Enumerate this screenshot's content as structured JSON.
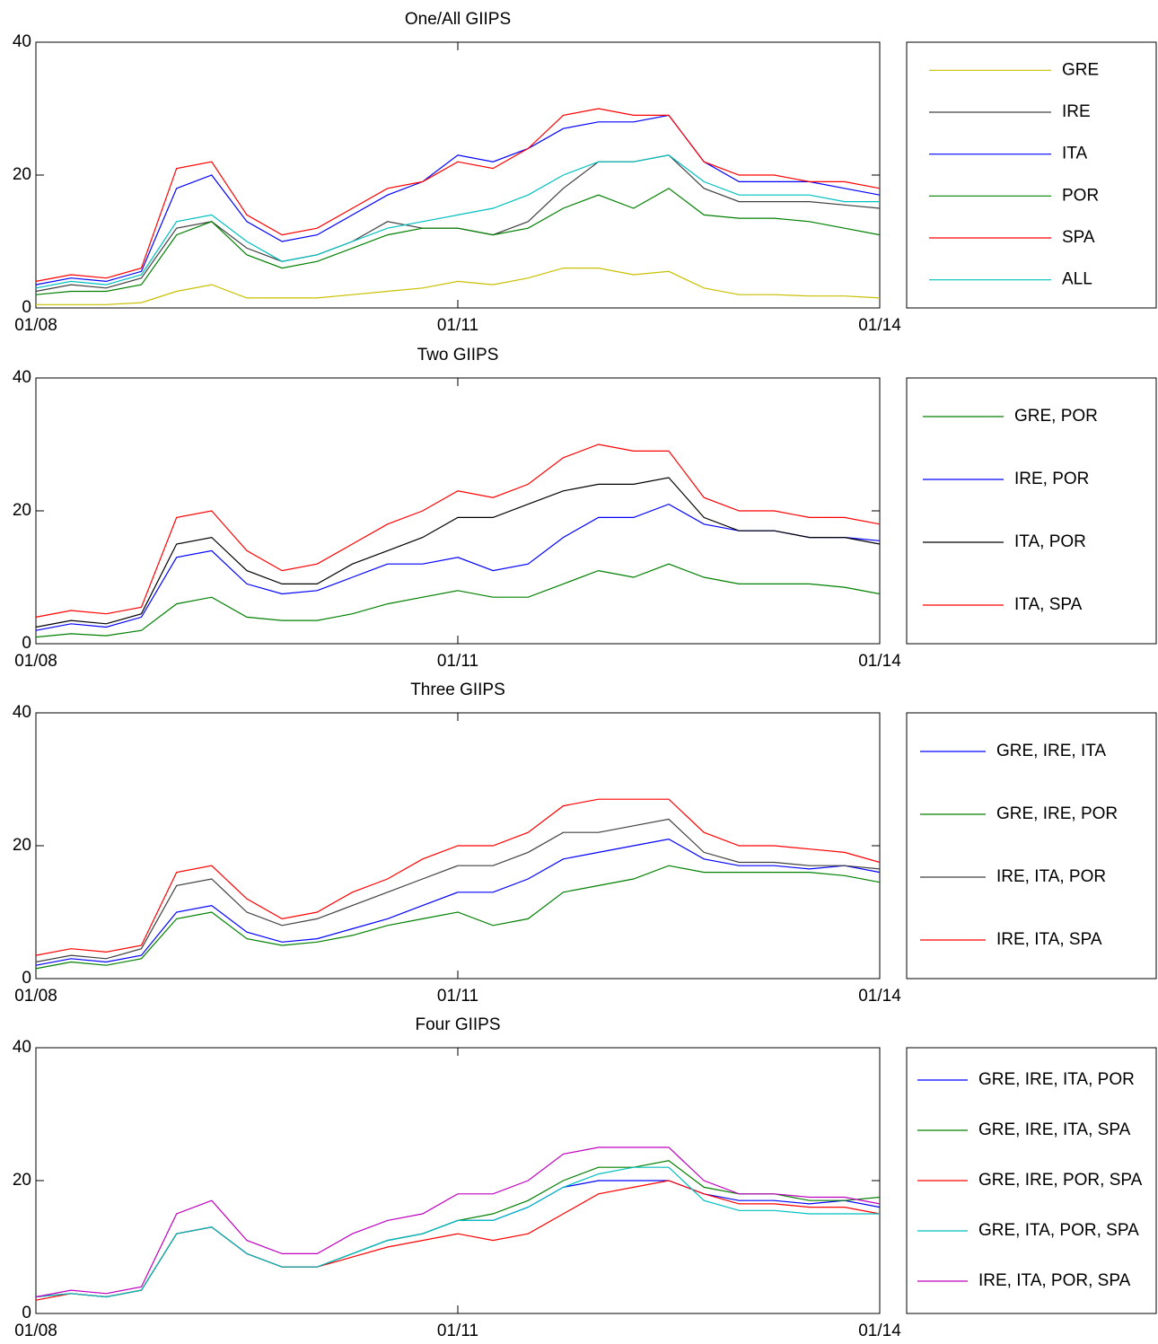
{
  "chart_data": [
    {
      "type": "line",
      "title": "One/All GIIPS",
      "x": [
        2008,
        2008.25,
        2008.5,
        2008.75,
        2009,
        2009.25,
        2009.5,
        2009.75,
        2010,
        2010.25,
        2010.5,
        2010.75,
        2011,
        2011.25,
        2011.5,
        2011.75,
        2012,
        2012.25,
        2012.5,
        2012.75,
        2013,
        2013.25,
        2013.5,
        2013.75,
        2014
      ],
      "xlim": [
        2008,
        2014
      ],
      "ylim": [
        0,
        40
      ],
      "yticks": [
        0,
        20,
        40
      ],
      "xticks": [
        {
          "value": 2008,
          "label": "01/08"
        },
        {
          "value": 2011,
          "label": "01/11"
        },
        {
          "value": 2014,
          "label": "01/14"
        }
      ],
      "series": [
        {
          "name": "GRE",
          "color": "#c8c000",
          "values": [
            0.5,
            0.5,
            0.5,
            0.8,
            2.5,
            3.5,
            1.5,
            1.5,
            1.5,
            2,
            2.5,
            3,
            4,
            3.5,
            4.5,
            6,
            6,
            5,
            5.5,
            3,
            2,
            2,
            1.8,
            1.8,
            1.5
          ]
        },
        {
          "name": "IRE",
          "color": "#404040",
          "values": [
            2.5,
            3.5,
            3,
            4.5,
            12,
            13,
            9,
            7,
            8,
            10,
            13,
            12,
            12,
            11,
            13,
            18,
            22,
            22,
            23,
            18,
            16,
            16,
            16,
            15.5,
            15
          ]
        },
        {
          "name": "ITA",
          "color": "#0000ff",
          "values": [
            3.5,
            4.5,
            4,
            5.5,
            18,
            20,
            13,
            10,
            11,
            14,
            17,
            19,
            23,
            22,
            24,
            27,
            28,
            28,
            29,
            22,
            19,
            19,
            19,
            18,
            17
          ]
        },
        {
          "name": "POR",
          "color": "#008000",
          "values": [
            2,
            2.5,
            2.5,
            3.5,
            11,
            13,
            8,
            6,
            7,
            9,
            11,
            12,
            12,
            11,
            12,
            15,
            17,
            15,
            18,
            14,
            13.5,
            13.5,
            13,
            12,
            11
          ]
        },
        {
          "name": "SPA",
          "color": "#ff0000",
          "values": [
            4,
            5,
            4.5,
            6,
            21,
            22,
            14,
            11,
            12,
            15,
            18,
            19,
            22,
            21,
            24,
            29,
            30,
            29,
            29,
            22,
            20,
            20,
            19,
            19,
            18
          ]
        },
        {
          "name": "ALL",
          "color": "#00bfbf",
          "values": [
            3,
            4,
            3.5,
            5,
            13,
            14,
            10,
            7,
            8,
            10,
            12,
            13,
            14,
            15,
            17,
            20,
            22,
            22,
            23,
            19,
            17,
            17,
            17,
            16,
            16
          ]
        }
      ]
    },
    {
      "type": "line",
      "title": "Two GIIPS",
      "x": [
        2008,
        2008.25,
        2008.5,
        2008.75,
        2009,
        2009.25,
        2009.5,
        2009.75,
        2010,
        2010.25,
        2010.5,
        2010.75,
        2011,
        2011.25,
        2011.5,
        2011.75,
        2012,
        2012.25,
        2012.5,
        2012.75,
        2013,
        2013.25,
        2013.5,
        2013.75,
        2014
      ],
      "xlim": [
        2008,
        2014
      ],
      "ylim": [
        0,
        40
      ],
      "yticks": [
        0,
        20,
        40
      ],
      "xticks": [
        {
          "value": 2008,
          "label": "01/08"
        },
        {
          "value": 2011,
          "label": "01/11"
        },
        {
          "value": 2014,
          "label": "01/14"
        }
      ],
      "series": [
        {
          "name": "GRE, POR",
          "color": "#008000",
          "values": [
            1,
            1.5,
            1.2,
            2,
            6,
            7,
            4,
            3.5,
            3.5,
            4.5,
            6,
            7,
            8,
            7,
            7,
            9,
            11,
            10,
            12,
            10,
            9,
            9,
            9,
            8.5,
            7.5
          ]
        },
        {
          "name": "IRE, POR",
          "color": "#0000ff",
          "values": [
            2,
            3,
            2.5,
            4,
            13,
            14,
            9,
            7.5,
            8,
            10,
            12,
            12,
            13,
            11,
            12,
            16,
            19,
            19,
            21,
            18,
            17,
            17,
            16,
            16,
            15.5
          ]
        },
        {
          "name": "ITA, POR",
          "color": "#000000",
          "values": [
            2.5,
            3.5,
            3,
            4.5,
            15,
            16,
            11,
            9,
            9,
            12,
            14,
            16,
            19,
            19,
            21,
            23,
            24,
            24,
            25,
            19,
            17,
            17,
            16,
            16,
            15
          ]
        },
        {
          "name": "ITA, SPA",
          "color": "#ff0000",
          "values": [
            4,
            5,
            4.5,
            5.5,
            19,
            20,
            14,
            11,
            12,
            15,
            18,
            20,
            23,
            22,
            24,
            28,
            30,
            29,
            29,
            22,
            20,
            20,
            19,
            19,
            18
          ]
        }
      ]
    },
    {
      "type": "line",
      "title": "Three GIIPS",
      "x": [
        2008,
        2008.25,
        2008.5,
        2008.75,
        2009,
        2009.25,
        2009.5,
        2009.75,
        2010,
        2010.25,
        2010.5,
        2010.75,
        2011,
        2011.25,
        2011.5,
        2011.75,
        2012,
        2012.25,
        2012.5,
        2012.75,
        2013,
        2013.25,
        2013.5,
        2013.75,
        2014
      ],
      "xlim": [
        2008,
        2014
      ],
      "ylim": [
        0,
        40
      ],
      "yticks": [
        0,
        20,
        40
      ],
      "xticks": [
        {
          "value": 2008,
          "label": "01/08"
        },
        {
          "value": 2011,
          "label": "01/11"
        },
        {
          "value": 2014,
          "label": "01/14"
        }
      ],
      "series": [
        {
          "name": "GRE, IRE, ITA",
          "color": "#0000ff",
          "values": [
            2,
            3,
            2.5,
            3.5,
            10,
            11,
            7,
            5.5,
            6,
            7.5,
            9,
            11,
            13,
            13,
            15,
            18,
            19,
            20,
            21,
            18,
            17,
            17,
            16.5,
            17,
            16
          ]
        },
        {
          "name": "GRE, IRE, POR",
          "color": "#008000",
          "values": [
            1.5,
            2.5,
            2,
            3,
            9,
            10,
            6,
            5,
            5.5,
            6.5,
            8,
            9,
            10,
            8,
            9,
            13,
            14,
            15,
            17,
            16,
            16,
            16,
            16,
            15.5,
            14.5
          ]
        },
        {
          "name": "IRE, ITA, POR",
          "color": "#404040",
          "values": [
            2.5,
            3.5,
            3,
            4.5,
            14,
            15,
            10,
            8,
            9,
            11,
            13,
            15,
            17,
            17,
            19,
            22,
            22,
            23,
            24,
            19,
            17.5,
            17.5,
            17,
            17,
            16.5
          ]
        },
        {
          "name": "IRE, ITA, SPA",
          "color": "#ff0000",
          "values": [
            3.5,
            4.5,
            4,
            5,
            16,
            17,
            12,
            9,
            10,
            13,
            15,
            18,
            20,
            20,
            22,
            26,
            27,
            27,
            27,
            22,
            20,
            20,
            19.5,
            19,
            17.5
          ]
        }
      ]
    },
    {
      "type": "line",
      "title": "Four GIIPS",
      "x": [
        2008,
        2008.25,
        2008.5,
        2008.75,
        2009,
        2009.25,
        2009.5,
        2009.75,
        2010,
        2010.25,
        2010.5,
        2010.75,
        2011,
        2011.25,
        2011.5,
        2011.75,
        2012,
        2012.25,
        2012.5,
        2012.75,
        2013,
        2013.25,
        2013.5,
        2013.75,
        2014
      ],
      "xlim": [
        2008,
        2014
      ],
      "ylim": [
        0,
        40
      ],
      "yticks": [
        0,
        20,
        40
      ],
      "xticks": [
        {
          "value": 2008,
          "label": "01/08"
        },
        {
          "value": 2011,
          "label": "01/11"
        },
        {
          "value": 2014,
          "label": "01/14"
        }
      ],
      "series": [
        {
          "name": "GRE, IRE, ITA, POR",
          "color": "#0000ff",
          "values": [
            2.5,
            3,
            2.5,
            3.5,
            12,
            13,
            9,
            7,
            7,
            9,
            11,
            12,
            14,
            14,
            16,
            19,
            20,
            20,
            20,
            18,
            17,
            17,
            16.5,
            17,
            16
          ]
        },
        {
          "name": "GRE, IRE, ITA, SPA",
          "color": "#008000",
          "values": [
            2.5,
            3,
            2.5,
            3.5,
            12,
            13,
            9,
            7,
            7,
            9,
            11,
            12,
            14,
            15,
            17,
            20,
            22,
            22,
            23,
            19,
            18,
            18,
            17,
            17,
            17.5
          ]
        },
        {
          "name": "GRE, IRE, POR, SPA",
          "color": "#ff0000",
          "values": [
            2,
            3,
            2.5,
            3.5,
            12,
            13,
            9,
            7,
            7,
            8.5,
            10,
            11,
            12,
            11,
            12,
            15,
            18,
            19,
            20,
            18,
            16.5,
            16.5,
            16,
            16,
            15
          ]
        },
        {
          "name": "GRE, ITA, POR, SPA",
          "color": "#00bfbf",
          "values": [
            2.5,
            3,
            2.5,
            3.5,
            12,
            13,
            9,
            7,
            7,
            9,
            11,
            12,
            14,
            14,
            16,
            19,
            21,
            22,
            22,
            17,
            15.5,
            15.5,
            15,
            15,
            15
          ]
        },
        {
          "name": "IRE, ITA, POR, SPA",
          "color": "#bf00bf",
          "values": [
            2.5,
            3.5,
            3,
            4,
            15,
            17,
            11,
            9,
            9,
            12,
            14,
            15,
            18,
            18,
            20,
            24,
            25,
            25,
            25,
            20,
            18,
            18,
            17.5,
            17.5,
            16.5
          ]
        }
      ]
    }
  ]
}
